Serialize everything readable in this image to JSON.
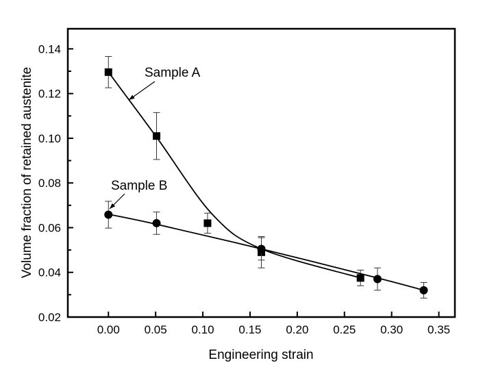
{
  "chart_data": {
    "type": "scatter",
    "title": "",
    "xlabel": "Engineering strain",
    "ylabel": "Volume fraction of retained austenite",
    "xlim": [
      -0.043,
      0.367
    ],
    "ylim": [
      0.02,
      0.149
    ],
    "xticks": [
      "0.00",
      "0.05",
      "0.10",
      "0.15",
      "0.20",
      "0.25",
      "0.30",
      "0.35"
    ],
    "xtick_values": [
      0,
      0.05,
      0.1,
      0.15,
      0.2,
      0.25,
      0.3,
      0.35
    ],
    "yticks": [
      "0.02",
      "0.04",
      "0.06",
      "0.08",
      "0.10",
      "0.12",
      "0.14"
    ],
    "ytick_values": [
      0.02,
      0.04,
      0.06,
      0.08,
      0.1,
      0.12,
      0.14
    ],
    "grid": false,
    "series": [
      {
        "name": "Sample A",
        "marker": "square",
        "x": [
          0.0,
          0.051,
          0.105,
          0.162,
          0.267
        ],
        "y": [
          0.1296,
          0.101,
          0.062,
          0.049,
          0.0375
        ],
        "err": [
          0.007,
          0.0105,
          0.0045,
          0.007,
          0.0035
        ],
        "fit_x": [
          0.0,
          0.051,
          0.11,
          0.162,
          0.267
        ],
        "fit_y": [
          0.1296,
          0.1005,
          0.066,
          0.0505,
          0.0375
        ]
      },
      {
        "name": "Sample B",
        "marker": "circle",
        "x": [
          0.0,
          0.051,
          0.162,
          0.285,
          0.334
        ],
        "y": [
          0.0658,
          0.062,
          0.0505,
          0.037,
          0.032
        ],
        "err": [
          0.006,
          0.005,
          0.005,
          0.005,
          0.0035
        ],
        "fit_x": [
          0.0,
          0.051,
          0.162,
          0.285,
          0.334
        ],
        "fit_y": [
          0.066,
          0.0615,
          0.0505,
          0.0375,
          0.032
        ]
      }
    ],
    "annotations": [
      {
        "text": "Sample A",
        "points_to_series": "Sample A",
        "label_x": 0.085,
        "label_y": 0.131,
        "arrow_to_x": 0.036,
        "arrow_to_y": 0.115
      },
      {
        "text": "Sample B",
        "points_to_series": "Sample B",
        "label_x": 0.03,
        "label_y": 0.077,
        "arrow_to_x": 0.015,
        "arrow_to_y": 0.0645
      }
    ]
  }
}
